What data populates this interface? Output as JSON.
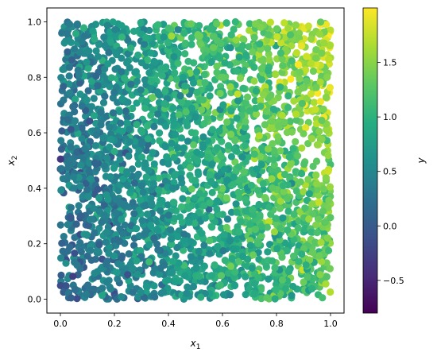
{
  "chart_data": {
    "type": "scatter",
    "title": "",
    "xlabel": "x",
    "xlabel_sub": "1",
    "ylabel": "x",
    "ylabel_sub": "2",
    "xlim": [
      -0.05,
      1.05
    ],
    "ylim": [
      -0.05,
      1.05
    ],
    "x_ticks": [
      0.0,
      0.2,
      0.4,
      0.6,
      0.8,
      1.0
    ],
    "x_tick_labels": [
      "0.0",
      "0.2",
      "0.4",
      "0.6",
      "0.8",
      "1.0"
    ],
    "y_ticks": [
      0.0,
      0.2,
      0.4,
      0.6,
      0.8,
      1.0
    ],
    "y_tick_labels": [
      "0.0",
      "0.2",
      "0.4",
      "0.6",
      "0.8",
      "1.0"
    ],
    "grid": false,
    "legend": "none",
    "point_count_approx": 3000,
    "x_distribution": "uniform [0, 1]",
    "y_distribution": "uniform [0, 1]",
    "color_value_range": [
      -0.8,
      2.0
    ],
    "colorbar": {
      "label": "y",
      "colormap": "viridis",
      "range": [
        -0.8,
        2.0
      ],
      "ticks": [
        -0.5,
        0.0,
        0.5,
        1.0,
        1.5
      ],
      "tick_labels": [
        "−0.5",
        "0.0",
        "0.5",
        "1.0",
        "1.5"
      ]
    }
  }
}
